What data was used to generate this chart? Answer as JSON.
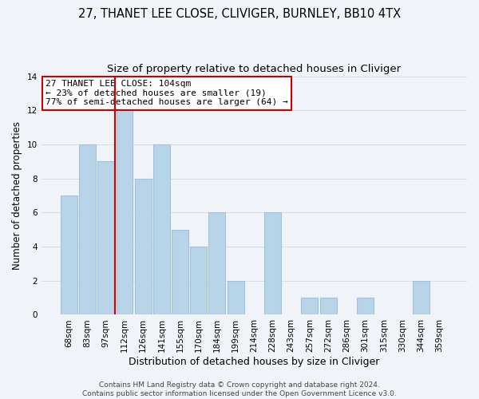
{
  "title1": "27, THANET LEE CLOSE, CLIVIGER, BURNLEY, BB10 4TX",
  "title2": "Size of property relative to detached houses in Cliviger",
  "xlabel": "Distribution of detached houses by size in Cliviger",
  "ylabel": "Number of detached properties",
  "bin_labels": [
    "68sqm",
    "83sqm",
    "97sqm",
    "112sqm",
    "126sqm",
    "141sqm",
    "155sqm",
    "170sqm",
    "184sqm",
    "199sqm",
    "214sqm",
    "228sqm",
    "243sqm",
    "257sqm",
    "272sqm",
    "286sqm",
    "301sqm",
    "315sqm",
    "330sqm",
    "344sqm",
    "359sqm"
  ],
  "bar_heights": [
    7,
    10,
    9,
    12,
    8,
    10,
    5,
    4,
    6,
    2,
    0,
    6,
    0,
    1,
    1,
    0,
    1,
    0,
    0,
    2,
    0
  ],
  "bar_color": "#b8d4e8",
  "bar_edge_color": "#a0c0dc",
  "vline_x_index": 2.5,
  "vline_color": "#cc0000",
  "annotation_title": "27 THANET LEE CLOSE: 104sqm",
  "annotation_line1": "← 23% of detached houses are smaller (19)",
  "annotation_line2": "77% of semi-detached houses are larger (64) →",
  "annotation_box_color": "#ffffff",
  "annotation_box_edge": "#cc0000",
  "ylim": [
    0,
    14
  ],
  "yticks": [
    0,
    2,
    4,
    6,
    8,
    10,
    12,
    14
  ],
  "footer1": "Contains HM Land Registry data © Crown copyright and database right 2024.",
  "footer2": "Contains public sector information licensed under the Open Government Licence v3.0.",
  "title1_fontsize": 10.5,
  "title2_fontsize": 9.5,
  "xlabel_fontsize": 9,
  "ylabel_fontsize": 8.5,
  "tick_fontsize": 7.5,
  "footer_fontsize": 6.5,
  "bg_color": "#f0f4f8"
}
